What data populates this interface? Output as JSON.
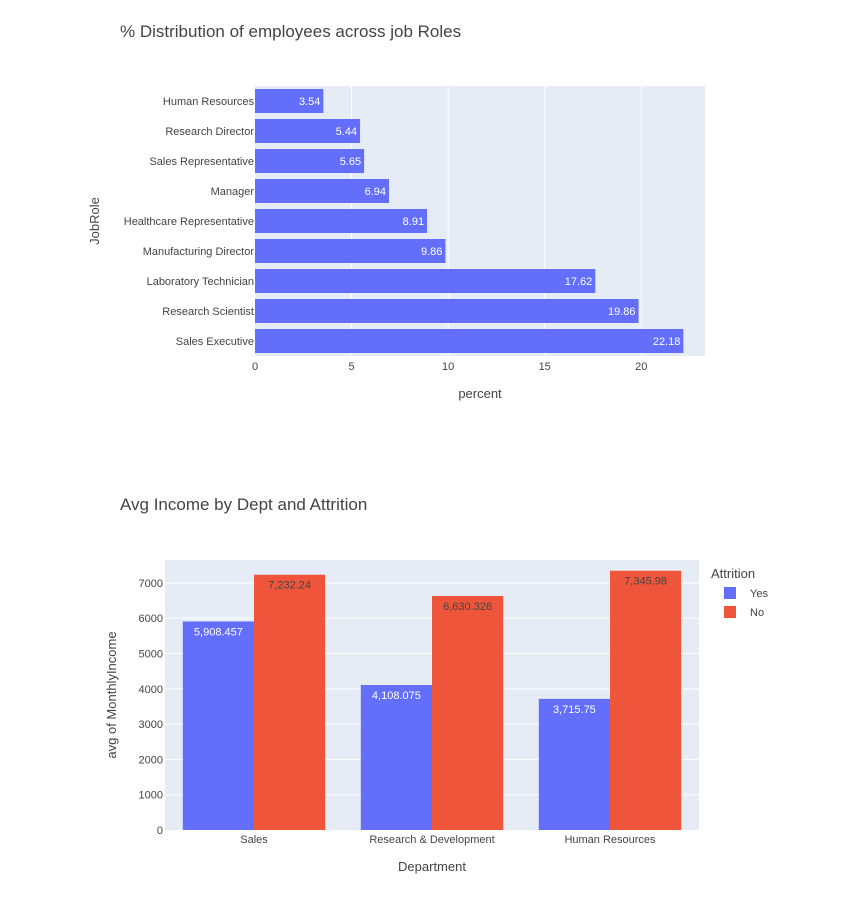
{
  "chart_data": [
    {
      "type": "bar",
      "orientation": "horizontal",
      "title": "% Distribution of employees across job Roles",
      "xlabel": "percent",
      "ylabel": "JobRole",
      "xlim": [
        0,
        23.3
      ],
      "xticks": [
        0,
        5,
        10,
        15,
        20
      ],
      "categories": [
        "Human Resources",
        "Research Director",
        "Sales Representative",
        "Manager",
        "Healthcare Representative",
        "Manufacturing Director",
        "Laboratory Technician",
        "Research Scientist",
        "Sales Executive"
      ],
      "values": [
        3.54,
        5.44,
        5.65,
        6.94,
        8.91,
        9.86,
        17.62,
        19.86,
        22.18
      ],
      "labels": [
        "3.54",
        "5.44",
        "5.65",
        "6.94",
        "8.91",
        "9.86",
        "17.62",
        "19.86",
        "22.18"
      ],
      "color": "#636efa",
      "grid": true
    },
    {
      "type": "bar",
      "orientation": "vertical",
      "barmode": "group",
      "title": "Avg Income by Dept and Attrition",
      "xlabel": "Department",
      "ylabel": "avg of MonthlyIncome",
      "ylim": [
        0,
        7650
      ],
      "yticks": [
        0,
        1000,
        2000,
        3000,
        4000,
        5000,
        6000,
        7000
      ],
      "categories": [
        "Sales",
        "Research & Development",
        "Human Resources"
      ],
      "legend_title": "Attrition",
      "legend_position": "top-right",
      "series": [
        {
          "name": "Yes",
          "color": "#636efa",
          "values": [
            5908.457,
            4108.075,
            3715.75
          ],
          "labels": [
            "5,908.457",
            "4,108.075",
            "3,715.75"
          ]
        },
        {
          "name": "No",
          "color": "#ef553b",
          "values": [
            7232.24,
            6630.326,
            7345.98
          ],
          "labels": [
            "7,232.24",
            "6,630.326",
            "7,345.98"
          ]
        }
      ],
      "grid": true
    }
  ]
}
